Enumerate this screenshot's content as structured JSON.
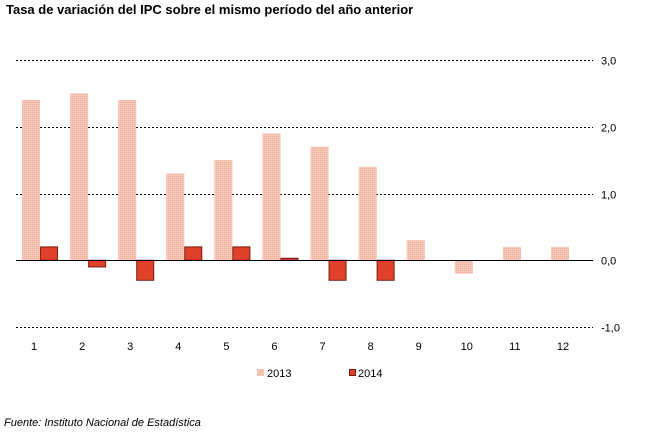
{
  "title": "Tasa de variación del IPC sobre el mismo período del año anterior",
  "source": "Fuente: Instituto Nacional de Estadística",
  "colors": {
    "series_2013": "#f7c9b8",
    "series_2014": "#e0412a",
    "border_2014": "#7a1a10"
  },
  "chart_data": {
    "type": "bar",
    "categories": [
      "1",
      "2",
      "3",
      "4",
      "5",
      "6",
      "7",
      "8",
      "9",
      "10",
      "11",
      "12"
    ],
    "series": [
      {
        "name": "2013",
        "values": [
          2.4,
          2.5,
          2.4,
          1.3,
          1.5,
          1.9,
          1.7,
          1.4,
          0.3,
          -0.2,
          0.2,
          0.2
        ]
      },
      {
        "name": "2014",
        "values": [
          0.2,
          -0.1,
          -0.3,
          0.2,
          0.2,
          0.03,
          -0.3,
          -0.3,
          null,
          null,
          null,
          null
        ]
      }
    ],
    "ylim": [
      -1.0,
      3.0
    ],
    "yticks": [
      "3,0",
      "2,0",
      "1,0",
      "0,0",
      "-1,0"
    ],
    "ytick_values": [
      3.0,
      2.0,
      1.0,
      0.0,
      -1.0
    ],
    "y_axis_side": "right",
    "grid": "dashed horizontal",
    "legend_position": "bottom"
  }
}
